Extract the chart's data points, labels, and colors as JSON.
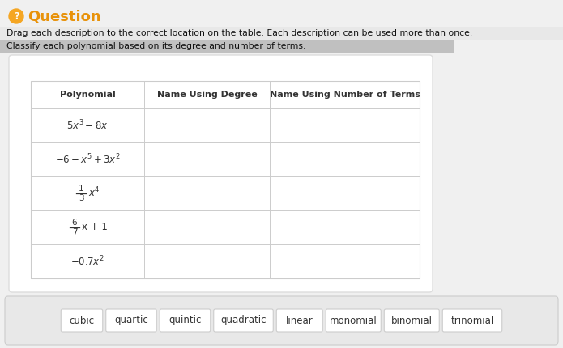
{
  "page_bg": "#f0f0f0",
  "white": "#ffffff",
  "border_light": "#dddddd",
  "border_med": "#cccccc",
  "text_dark": "#333333",
  "text_black": "#111111",
  "highlight_bg": "#c8c8c8",
  "orange": "#f5a623",
  "orange_text": "#e8920a",
  "question_title": "Question",
  "line1": "Drag each description to the correct location on the table. Each description can be used more than once.",
  "line2": "Classify each polynomial based on its degree and number of terms.",
  "headers": [
    "Polynomial",
    "Name Using Degree",
    "Name Using Number of Terms"
  ],
  "chips": [
    "cubic",
    "quartic",
    "quintic",
    "quadratic",
    "linear",
    "monomial",
    "binomial",
    "trinomial"
  ],
  "fig_w": 6.95,
  "fig_h": 4.3,
  "dpi": 100
}
